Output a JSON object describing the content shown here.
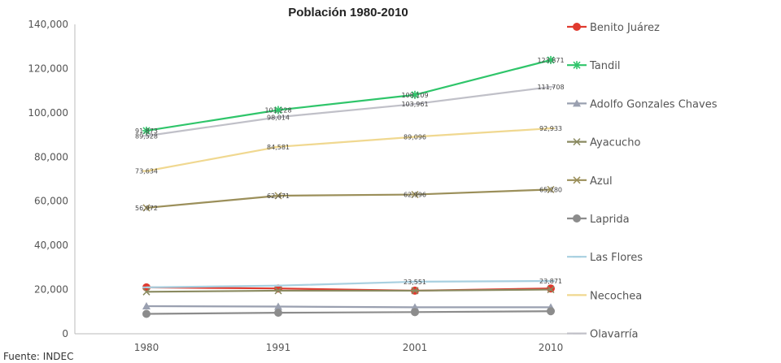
{
  "chart_data": {
    "type": "line",
    "title": "Población 1980-2010",
    "source": "Fuente: INDEC",
    "categories": [
      "1980",
      "1991",
      "2001",
      "2010"
    ],
    "ylim": [
      0,
      140000
    ],
    "yticks": [
      0,
      20000,
      40000,
      60000,
      80000,
      100000,
      120000,
      140000
    ],
    "ytick_labels": [
      "0",
      "20,000",
      "40,000",
      "60,000",
      "80,000",
      "100,000",
      "120,000",
      "140,000"
    ],
    "legend_position": "right",
    "series": [
      {
        "name": "Benito Juárez",
        "color": "#e03a2f",
        "marker": "circle",
        "values": [
          21000,
          20500,
          19500,
          20500
        ],
        "labels": [
          "",
          "",
          "",
          ""
        ]
      },
      {
        "name": "Tandil",
        "color": "#2fc56a",
        "marker": "star",
        "values": [
          91873,
          101228,
          108109,
          123871
        ],
        "labels": [
          "91,873",
          "101,228",
          "108,109",
          "123,871"
        ]
      },
      {
        "name": "Adolfo Gonzales Chaves",
        "color": "#9aa0b0",
        "marker": "triangle",
        "values": [
          12500,
          12300,
          12000,
          12000
        ],
        "labels": [
          "",
          "",
          "",
          ""
        ]
      },
      {
        "name": "Ayacucho",
        "color": "#8a8a60",
        "marker": "x",
        "values": [
          19000,
          19500,
          19500,
          20000
        ],
        "labels": [
          "",
          "",
          "",
          ""
        ]
      },
      {
        "name": "Azul",
        "color": "#9b8f5a",
        "marker": "x",
        "values": [
          56972,
          62471,
          62996,
          65280
        ],
        "labels": [
          "56,972",
          "62,471",
          "62,996",
          "65,280"
        ]
      },
      {
        "name": "Laprida",
        "color": "#8c8c8c",
        "marker": "circle",
        "values": [
          9000,
          9500,
          9800,
          10200
        ],
        "labels": [
          "",
          "",
          "",
          ""
        ]
      },
      {
        "name": "Las Flores",
        "color": "#a8d0e0",
        "marker": "dash",
        "values": [
          21000,
          21780,
          23551,
          23871
        ],
        "labels": [
          "",
          "",
          "23,551",
          "23,871"
        ]
      },
      {
        "name": "Necochea",
        "color": "#f0d890",
        "marker": "dash",
        "values": [
          73634,
          84581,
          89096,
          92933
        ],
        "labels": [
          "73,634",
          "84,581",
          "89,096",
          "92,933"
        ]
      },
      {
        "name": "Olavarría",
        "color": "#c0c0c8",
        "marker": "dash",
        "values": [
          89528,
          98014,
          103961,
          111708
        ],
        "labels": [
          "89,528",
          "98,014",
          "103,961",
          "111,708"
        ]
      }
    ]
  }
}
